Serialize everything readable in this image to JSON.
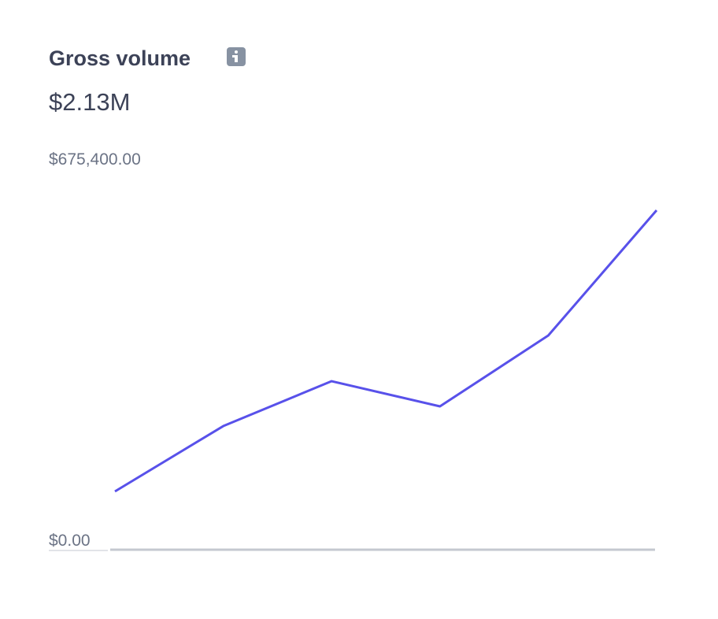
{
  "chart_data": {
    "type": "line",
    "title": "Gross volume",
    "total": "$2.13M",
    "categories": [
      null,
      null,
      null,
      null,
      null,
      null
    ],
    "series": [
      {
        "color": "#5851ea",
        "values": [
          103500,
          219500,
          299200,
          254500,
          380300,
          602700
        ]
      }
    ],
    "ylim": [
      0,
      675400
    ],
    "yticks": [
      {
        "value": 0,
        "label": "$0.00"
      },
      {
        "value": 675400,
        "label": "$675,400.00"
      }
    ]
  }
}
